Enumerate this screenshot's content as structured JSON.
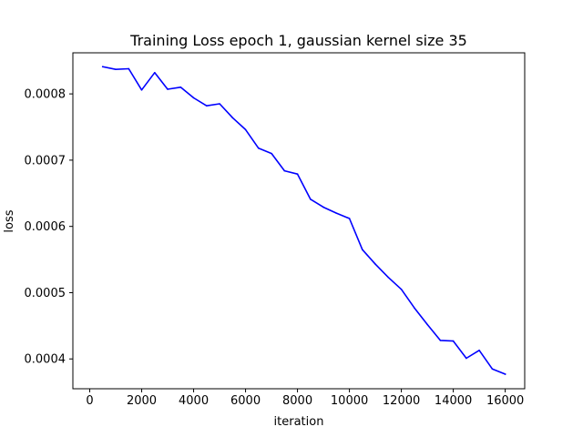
{
  "chart_data": {
    "type": "line",
    "title": "Training Loss epoch 1, gaussian kernel size 35",
    "xlabel": "iteration",
    "ylabel": "loss",
    "xlim": [
      -650,
      16750
    ],
    "ylim": [
      0.000355,
      0.000862
    ],
    "xticks": [
      0,
      2000,
      4000,
      6000,
      8000,
      10000,
      12000,
      14000,
      16000
    ],
    "xtick_labels": [
      "0",
      "2000",
      "4000",
      "6000",
      "8000",
      "10000",
      "12000",
      "14000",
      "16000"
    ],
    "yticks": [
      0.0004,
      0.0005,
      0.0006,
      0.0007,
      0.0008
    ],
    "ytick_labels": [
      "0.0004",
      "0.0005",
      "0.0006",
      "0.0007",
      "0.0008"
    ],
    "grid": false,
    "legend": "none",
    "series": [
      {
        "color": "#0000ff",
        "x": [
          500,
          1000,
          1500,
          2000,
          2500,
          3000,
          3500,
          4000,
          4500,
          5000,
          5500,
          6000,
          6500,
          7000,
          7500,
          8000,
          8500,
          9000,
          9500,
          10000,
          10500,
          11000,
          11500,
          12000,
          12500,
          13000,
          13500,
          14000,
          14500,
          15000,
          15500,
          16000
        ],
        "y": [
          0.000841,
          0.000837,
          0.000838,
          0.000806,
          0.000832,
          0.000807,
          0.00081,
          0.000794,
          0.000782,
          0.000785,
          0.000764,
          0.000746,
          0.000718,
          0.00071,
          0.000684,
          0.000679,
          0.000641,
          0.000629,
          0.00062,
          0.000612,
          0.000565,
          0.000543,
          0.000523,
          0.000505,
          0.000477,
          0.000452,
          0.000428,
          0.000427,
          0.000401,
          0.000413,
          0.000385,
          0.000377
        ]
      }
    ]
  }
}
